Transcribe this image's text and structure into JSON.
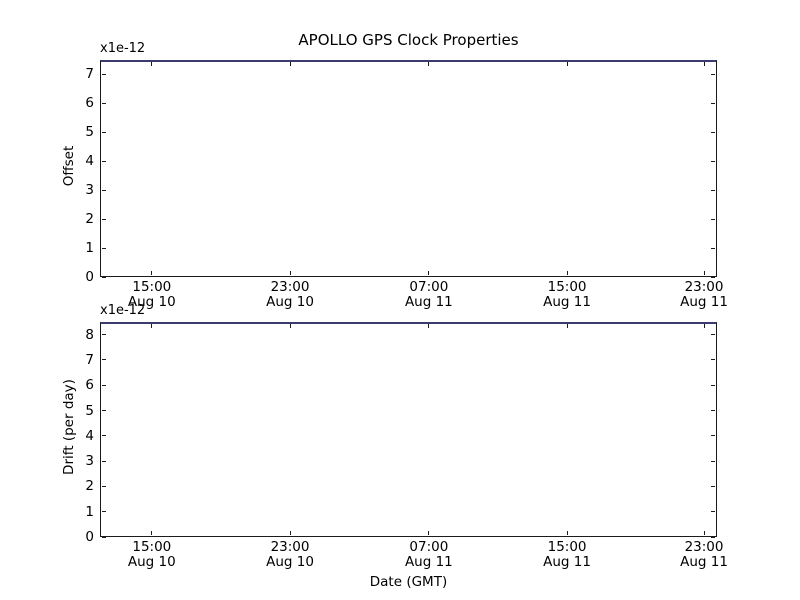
{
  "figure": {
    "title": "APOLLO GPS Clock Properties",
    "background_color": "#ffffff",
    "spine_color": "#1b1b1b",
    "top_edge_line_color": "#3b3b6e",
    "text_color": "#000000"
  },
  "chart_data": [
    {
      "type": "line",
      "subplot": "offset",
      "ylabel": "Offset",
      "offset_text": "x1e-12",
      "ylim": [
        0,
        7.5
      ],
      "yticks": [
        0,
        1,
        2,
        3,
        4,
        5,
        6,
        7
      ],
      "xticks": [
        {
          "frac": 0.084,
          "time": "15:00",
          "date": "Aug 10"
        },
        {
          "frac": 0.308,
          "time": "23:00",
          "date": "Aug 10"
        },
        {
          "frac": 0.533,
          "time": "07:00",
          "date": "Aug 11"
        },
        {
          "frac": 0.757,
          "time": "15:00",
          "date": "Aug 11"
        },
        {
          "frac": 0.979,
          "time": "23:00",
          "date": "Aug 11"
        }
      ],
      "series": [],
      "grid": false,
      "legend": null,
      "note": "plot area empty; flat blue line along top axis edge"
    },
    {
      "type": "line",
      "subplot": "drift",
      "ylabel": "Drift (per day)",
      "xlabel": "Date (GMT)",
      "offset_text": "x1e-12",
      "ylim": [
        0,
        8.5
      ],
      "yticks": [
        0,
        1,
        2,
        3,
        4,
        5,
        6,
        7,
        8
      ],
      "xticks": [
        {
          "frac": 0.084,
          "time": "15:00",
          "date": "Aug 10"
        },
        {
          "frac": 0.308,
          "time": "23:00",
          "date": "Aug 10"
        },
        {
          "frac": 0.533,
          "time": "07:00",
          "date": "Aug 11"
        },
        {
          "frac": 0.757,
          "time": "15:00",
          "date": "Aug 11"
        },
        {
          "frac": 0.979,
          "time": "23:00",
          "date": "Aug 11"
        }
      ],
      "series": [],
      "grid": false,
      "legend": null,
      "note": "plot area empty; flat blue line along top axis edge"
    }
  ]
}
